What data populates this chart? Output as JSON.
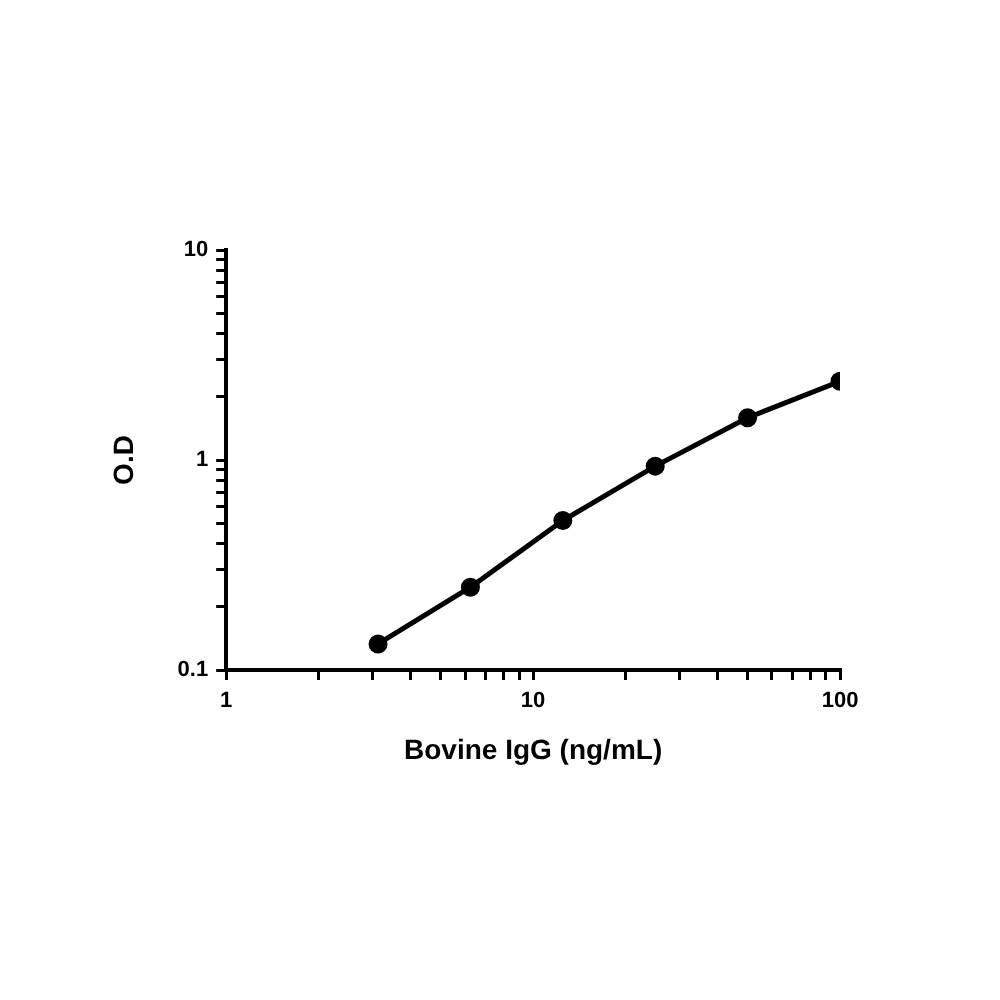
{
  "chart_data": {
    "type": "line",
    "xlabel": "Bovine IgG (ng/mL)",
    "ylabel": "O.D",
    "log": "xy",
    "grid": false,
    "marker": "circle",
    "line_style": "solid",
    "x": [
      3.125,
      6.25,
      12.5,
      25,
      50,
      100
    ],
    "series": [
      {
        "color": "#000000",
        "values": [
          0.133,
          0.248,
          0.515,
          0.935,
          1.59,
          2.37
        ]
      }
    ],
    "xlim": [
      1,
      100
    ],
    "ylim": [
      0.1,
      10
    ],
    "xticks": [
      1,
      {
        "value": 2,
        "label": null
      },
      {
        "value": 3,
        "label": null
      },
      {
        "value": 4,
        "label": null
      },
      {
        "value": 5,
        "label": null
      },
      {
        "value": 6,
        "label": null
      },
      {
        "value": 7,
        "label": null
      },
      {
        "value": 8,
        "label": null
      },
      {
        "value": 9,
        "label": null
      },
      10,
      {
        "value": 20,
        "label": null
      },
      {
        "value": 30,
        "label": null
      },
      {
        "value": 40,
        "label": null
      },
      {
        "value": 50,
        "label": null
      },
      {
        "value": 60,
        "label": null
      },
      {
        "value": 70,
        "label": null
      },
      {
        "value": 80,
        "label": null
      },
      {
        "value": 90,
        "label": null
      },
      100
    ],
    "yticks": [
      0.1,
      {
        "value": 0.2,
        "label": null
      },
      {
        "value": 0.3,
        "label": null
      },
      {
        "value": 0.4,
        "label": null
      },
      {
        "value": 0.5,
        "label": null
      },
      {
        "value": 0.6,
        "label": null
      },
      {
        "value": 0.7,
        "label": null
      },
      {
        "value": 0.8,
        "label": null
      },
      {
        "value": 0.9,
        "label": null
      },
      1,
      {
        "value": 2,
        "label": null
      },
      {
        "value": 3,
        "label": null
      },
      {
        "value": 4,
        "label": null
      },
      {
        "value": 5,
        "label": null
      },
      {
        "value": 6,
        "label": null
      },
      {
        "value": 7,
        "label": null
      },
      {
        "value": 8,
        "label": null
      },
      {
        "value": 9,
        "label": null
      },
      10
    ]
  }
}
